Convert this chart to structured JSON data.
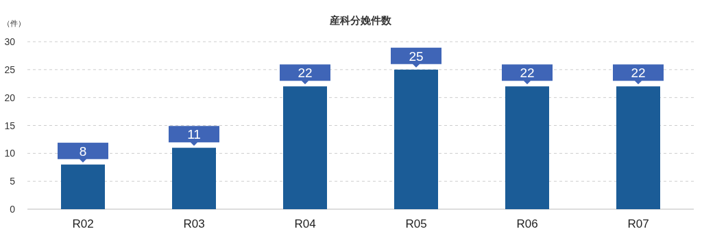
{
  "chart_data": {
    "type": "bar",
    "title": "産科分娩件数",
    "ylabel": "（件）",
    "categories": [
      "R02",
      "R03",
      "R04",
      "R05",
      "R06",
      "R07"
    ],
    "values": [
      8,
      11,
      22,
      25,
      22,
      22
    ],
    "color": "#1b5c97",
    "ylim": [
      0,
      30
    ],
    "yticks": [
      0,
      5,
      10,
      15,
      20,
      25,
      30
    ],
    "grid": "y",
    "data_labels": true
  }
}
